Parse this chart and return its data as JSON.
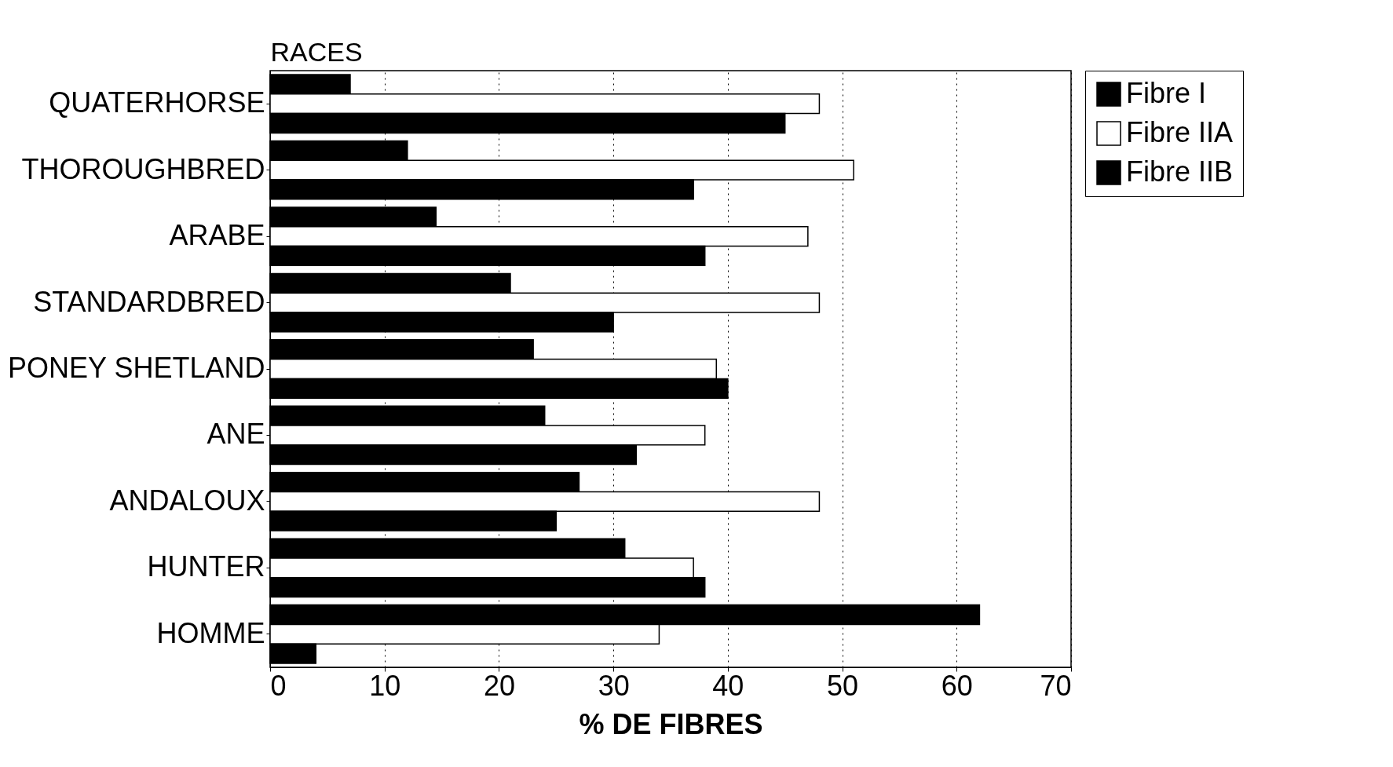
{
  "chart_data": {
    "type": "bar",
    "orientation": "horizontal",
    "ylabel": "RACES",
    "xlabel": "% DE FIBRES",
    "categories": [
      "QUATERHORSE",
      "THOROUGHBRED",
      "ARABE",
      "STANDARDBRED",
      "PONEY SHETLAND",
      "ANE",
      "ANDALOUX",
      "HUNTER",
      "HOMME"
    ],
    "series": [
      {
        "name": "Fibre I",
        "color": "#000000",
        "values": [
          7,
          12,
          14.5,
          21,
          23,
          24,
          27,
          31,
          62
        ]
      },
      {
        "name": "Fibre IIA",
        "color": "#ffffff",
        "values": [
          48,
          51,
          47,
          48,
          39,
          38,
          48,
          37,
          34
        ]
      },
      {
        "name": "Fibre IIB",
        "color": "#000000",
        "values": [
          45,
          37,
          38,
          30,
          40,
          32,
          25,
          38,
          4
        ]
      }
    ],
    "xlim": [
      0,
      70
    ],
    "xticks": [
      0,
      10,
      20,
      30,
      40,
      50,
      60,
      70
    ],
    "grid": "x",
    "legend": "right"
  }
}
